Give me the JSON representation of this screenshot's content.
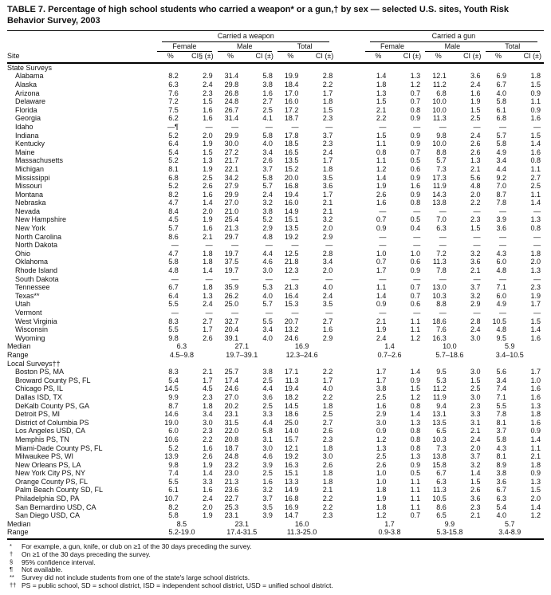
{
  "title": "TABLE 7. Percentage of high school students who carried a weapon* or a gun,† by sex — selected U.S. sites, Youth Risk Behavior Survey, 2003",
  "header": {
    "site_label": "Site",
    "groups": [
      {
        "label": "Carried a weapon"
      },
      {
        "label": "Carried a gun"
      }
    ],
    "subgroups": [
      "Female",
      "Male",
      "Total"
    ],
    "col_pct": "%",
    "col_ci_first": "CI§ (±)",
    "col_ci": "CI (±)"
  },
  "sections": [
    {
      "label": "State Surveys",
      "rows": [
        {
          "site": "Alabama",
          "values": [
            "8.2",
            "2.9",
            "31.4",
            "5.8",
            "19.9",
            "2.8",
            "1.4",
            "1.3",
            "12.1",
            "3.6",
            "6.9",
            "1.8"
          ]
        },
        {
          "site": "Alaska",
          "values": [
            "6.3",
            "2.4",
            "29.8",
            "3.8",
            "18.4",
            "2.2",
            "1.8",
            "1.2",
            "11.2",
            "2.4",
            "6.7",
            "1.5"
          ]
        },
        {
          "site": "Arizona",
          "values": [
            "7.6",
            "2.3",
            "26.8",
            "1.6",
            "17.0",
            "1.7",
            "1.3",
            "0.7",
            "6.8",
            "1.6",
            "4.0",
            "0.9"
          ]
        },
        {
          "site": "Delaware",
          "values": [
            "7.2",
            "1.5",
            "24.8",
            "2.7",
            "16.0",
            "1.8",
            "1.5",
            "0.7",
            "10.0",
            "1.9",
            "5.8",
            "1.1"
          ]
        },
        {
          "site": "Florida",
          "values": [
            "7.5",
            "1.6",
            "26.7",
            "2.5",
            "17.2",
            "1.5",
            "2.1",
            "0.8",
            "10.0",
            "1.5",
            "6.1",
            "0.9"
          ]
        },
        {
          "site": "Georgia",
          "values": [
            "6.2",
            "1.6",
            "31.4",
            "4.1",
            "18.7",
            "2.3",
            "2.2",
            "0.9",
            "11.3",
            "2.5",
            "6.8",
            "1.6"
          ]
        },
        {
          "site": "Idaho",
          "values": [
            "—¶",
            "—",
            "—",
            "—",
            "—",
            "—",
            "—",
            "—",
            "—",
            "—",
            "—",
            "—"
          ]
        },
        {
          "site": "Indiana",
          "values": [
            "5.2",
            "2.0",
            "29.9",
            "5.8",
            "17.8",
            "3.7",
            "1.5",
            "0.9",
            "9.8",
            "2.4",
            "5.7",
            "1.5"
          ]
        },
        {
          "site": "Kentucky",
          "values": [
            "6.4",
            "1.9",
            "30.0",
            "4.0",
            "18.5",
            "2.3",
            "1.1",
            "0.9",
            "10.0",
            "2.6",
            "5.8",
            "1.4"
          ]
        },
        {
          "site": "Maine",
          "values": [
            "5.4",
            "1.5",
            "27.2",
            "3.4",
            "16.5",
            "2.4",
            "0.8",
            "0.7",
            "8.8",
            "2.6",
            "4.9",
            "1.6"
          ]
        },
        {
          "site": "Massachusetts",
          "values": [
            "5.2",
            "1.3",
            "21.7",
            "2.6",
            "13.5",
            "1.7",
            "1.1",
            "0.5",
            "5.7",
            "1.3",
            "3.4",
            "0.8"
          ]
        },
        {
          "site": "Michigan",
          "values": [
            "8.1",
            "1.9",
            "22.1",
            "3.7",
            "15.2",
            "1.8",
            "1.2",
            "0.6",
            "7.3",
            "2.1",
            "4.4",
            "1.1"
          ]
        },
        {
          "site": "Mississippi",
          "values": [
            "6.8",
            "2.5",
            "34.2",
            "5.8",
            "20.0",
            "3.5",
            "1.4",
            "0.9",
            "17.3",
            "5.6",
            "9.2",
            "2.7"
          ]
        },
        {
          "site": "Missouri",
          "values": [
            "5.2",
            "2.6",
            "27.9",
            "5.7",
            "16.8",
            "3.6",
            "1.9",
            "1.6",
            "11.9",
            "4.8",
            "7.0",
            "2.5"
          ]
        },
        {
          "site": "Montana",
          "values": [
            "8.2",
            "1.6",
            "29.9",
            "2.4",
            "19.4",
            "1.7",
            "2.6",
            "0.9",
            "14.3",
            "2.0",
            "8.7",
            "1.1"
          ]
        },
        {
          "site": "Nebraska",
          "values": [
            "4.7",
            "1.4",
            "27.0",
            "3.2",
            "16.0",
            "2.1",
            "1.6",
            "0.8",
            "13.8",
            "2.2",
            "7.8",
            "1.4"
          ]
        },
        {
          "site": "Nevada",
          "values": [
            "8.4",
            "2.0",
            "21.0",
            "3.8",
            "14.9",
            "2.1",
            "—",
            "—",
            "—",
            "—",
            "—",
            "—"
          ]
        },
        {
          "site": "New Hampshire",
          "values": [
            "4.5",
            "1.9",
            "25.4",
            "5.2",
            "15.1",
            "3.2",
            "0.7",
            "0.5",
            "7.0",
            "2.3",
            "3.9",
            "1.3"
          ]
        },
        {
          "site": "New York",
          "values": [
            "5.7",
            "1.6",
            "21.3",
            "2.9",
            "13.5",
            "2.0",
            "0.9",
            "0.4",
            "6.3",
            "1.5",
            "3.6",
            "0.8"
          ]
        },
        {
          "site": "North Carolina",
          "values": [
            "8.6",
            "2.1",
            "29.7",
            "4.8",
            "19.2",
            "2.9",
            "—",
            "—",
            "—",
            "—",
            "—",
            "—"
          ]
        },
        {
          "site": "North Dakota",
          "values": [
            "—",
            "—",
            "—",
            "—",
            "—",
            "—",
            "—",
            "—",
            "—",
            "—",
            "—",
            "—"
          ]
        },
        {
          "site": "Ohio",
          "values": [
            "4.7",
            "1.8",
            "19.7",
            "4.4",
            "12.5",
            "2.8",
            "1.0",
            "1.0",
            "7.2",
            "3.2",
            "4.3",
            "1.8"
          ]
        },
        {
          "site": "Oklahoma",
          "values": [
            "5.8",
            "1.8",
            "37.5",
            "4.6",
            "21.8",
            "3.4",
            "0.7",
            "0.6",
            "11.3",
            "3.6",
            "6.0",
            "2.0"
          ]
        },
        {
          "site": "Rhode Island",
          "values": [
            "4.8",
            "1.4",
            "19.7",
            "3.0",
            "12.3",
            "2.0",
            "1.7",
            "0.9",
            "7.8",
            "2.1",
            "4.8",
            "1.3"
          ]
        },
        {
          "site": "South Dakota",
          "values": [
            "—",
            "—",
            "—",
            "—",
            "—",
            "—",
            "—",
            "—",
            "—",
            "—",
            "—",
            "—"
          ]
        },
        {
          "site": "Tennessee",
          "values": [
            "6.7",
            "1.8",
            "35.9",
            "5.3",
            "21.3",
            "4.0",
            "1.1",
            "0.7",
            "13.0",
            "3.7",
            "7.1",
            "2.3"
          ]
        },
        {
          "site": "Texas**",
          "values": [
            "6.4",
            "1.3",
            "26.2",
            "4.0",
            "16.4",
            "2.4",
            "1.4",
            "0.7",
            "10.3",
            "3.2",
            "6.0",
            "1.9"
          ]
        },
        {
          "site": "Utah",
          "values": [
            "5.5",
            "2.4",
            "25.0",
            "5.7",
            "15.3",
            "3.5",
            "0.9",
            "0.6",
            "8.8",
            "2.9",
            "4.9",
            "1.7"
          ]
        },
        {
          "site": "Vermont",
          "values": [
            "—",
            "—",
            "—",
            "—",
            "—",
            "—",
            "—",
            "—",
            "—",
            "—",
            "—",
            "—"
          ]
        },
        {
          "site": "West Virginia",
          "values": [
            "8.3",
            "2.7",
            "32.7",
            "5.5",
            "20.7",
            "2.7",
            "2.1",
            "1.1",
            "18.6",
            "2.8",
            "10.5",
            "1.5"
          ]
        },
        {
          "site": "Wisconsin",
          "values": [
            "5.5",
            "1.7",
            "20.4",
            "3.4",
            "13.2",
            "1.6",
            "1.9",
            "1.1",
            "7.6",
            "2.4",
            "4.8",
            "1.4"
          ]
        },
        {
          "site": "Wyoming",
          "values": [
            "9.8",
            "2.6",
            "39.1",
            "4.0",
            "24.6",
            "2.9",
            "2.4",
            "1.2",
            "16.3",
            "3.0",
            "9.5",
            "1.6"
          ]
        }
      ],
      "median": {
        "label": "Median",
        "values": [
          "6.3",
          "27.1",
          "16.9",
          "1.4",
          "10.0",
          "5.9"
        ]
      },
      "range": {
        "label": "Range",
        "values": [
          "4.5–9.8",
          "19.7–39.1",
          "12.3–24.6",
          "0.7–2.6",
          "5.7–18.6",
          "3.4–10.5"
        ]
      }
    },
    {
      "label": "Local Surveys††",
      "rows": [
        {
          "site": "Boston PS, MA",
          "values": [
            "8.3",
            "2.1",
            "25.7",
            "3.8",
            "17.1",
            "2.2",
            "1.7",
            "1.4",
            "9.5",
            "3.0",
            "5.6",
            "1.7"
          ]
        },
        {
          "site": "Broward County PS, FL",
          "values": [
            "5.4",
            "1.7",
            "17.4",
            "2.5",
            "11.3",
            "1.7",
            "1.7",
            "0.9",
            "5.3",
            "1.5",
            "3.4",
            "1.0"
          ]
        },
        {
          "site": "Chicago PS, IL",
          "values": [
            "14.5",
            "4.5",
            "24.6",
            "4.4",
            "19.4",
            "4.0",
            "3.8",
            "1.5",
            "11.2",
            "2.5",
            "7.4",
            "1.6"
          ]
        },
        {
          "site": "Dallas ISD, TX",
          "values": [
            "9.9",
            "2.3",
            "27.0",
            "3.6",
            "18.2",
            "2.2",
            "2.5",
            "1.2",
            "11.9",
            "3.0",
            "7.1",
            "1.6"
          ]
        },
        {
          "site": "DeKalb County PS, GA",
          "values": [
            "8.7",
            "1.8",
            "20.2",
            "2.5",
            "14.5",
            "1.8",
            "1.6",
            "0.8",
            "9.4",
            "2.3",
            "5.5",
            "1.3"
          ]
        },
        {
          "site": "Detroit PS, MI",
          "values": [
            "14.6",
            "3.4",
            "23.1",
            "3.3",
            "18.6",
            "2.5",
            "2.9",
            "1.4",
            "13.1",
            "3.3",
            "7.8",
            "1.8"
          ]
        },
        {
          "site": "District of Columbia PS",
          "values": [
            "19.0",
            "3.0",
            "31.5",
            "4.4",
            "25.0",
            "2.7",
            "3.0",
            "1.3",
            "13.5",
            "3.1",
            "8.1",
            "1.6"
          ]
        },
        {
          "site": "Los Angeles USD, CA",
          "values": [
            "6.0",
            "2.3",
            "22.0",
            "5.8",
            "14.0",
            "2.6",
            "0.9",
            "0.8",
            "6.5",
            "2.1",
            "3.7",
            "0.9"
          ]
        },
        {
          "site": "Memphis PS, TN",
          "values": [
            "10.6",
            "2.2",
            "20.8",
            "3.1",
            "15.7",
            "2.3",
            "1.2",
            "0.8",
            "10.3",
            "2.4",
            "5.8",
            "1.4"
          ]
        },
        {
          "site": "Miami-Dade County PS, FL",
          "values": [
            "5.2",
            "1.6",
            "18.7",
            "3.0",
            "12.1",
            "1.8",
            "1.3",
            "0.8",
            "7.3",
            "2.0",
            "4.3",
            "1.1"
          ]
        },
        {
          "site": "Milwaukee PS, WI",
          "values": [
            "13.9",
            "2.6",
            "24.8",
            "4.6",
            "19.2",
            "3.0",
            "2.5",
            "1.3",
            "13.8",
            "3.7",
            "8.1",
            "2.1"
          ]
        },
        {
          "site": "New Orleans PS, LA",
          "values": [
            "9.8",
            "1.9",
            "23.2",
            "3.9",
            "16.3",
            "2.6",
            "2.6",
            "0.9",
            "15.8",
            "3.2",
            "8.9",
            "1.8"
          ]
        },
        {
          "site": "New York City PS, NY",
          "values": [
            "7.4",
            "1.4",
            "23.0",
            "2.5",
            "15.1",
            "1.8",
            "1.0",
            "0.5",
            "6.7",
            "1.4",
            "3.8",
            "0.9"
          ]
        },
        {
          "site": "Orange County PS, FL",
          "values": [
            "5.5",
            "3.3",
            "21.3",
            "1.6",
            "13.3",
            "1.8",
            "1.0",
            "1.1",
            "6.3",
            "1.5",
            "3.6",
            "1.3"
          ]
        },
        {
          "site": "Palm Beach County SD, FL",
          "values": [
            "6.1",
            "1.6",
            "23.6",
            "3.2",
            "14.9",
            "2.1",
            "1.8",
            "1.1",
            "11.3",
            "2.6",
            "6.7",
            "1.5"
          ]
        },
        {
          "site": "Philadelphia SD, PA",
          "values": [
            "10.7",
            "2.4",
            "22.7",
            "3.7",
            "16.8",
            "2.2",
            "1.9",
            "1.1",
            "10.5",
            "3.6",
            "6.3",
            "2.0"
          ]
        },
        {
          "site": "San Bernardino USD, CA",
          "values": [
            "8.2",
            "2.0",
            "25.3",
            "3.5",
            "16.9",
            "2.2",
            "1.8",
            "1.1",
            "8.6",
            "2.3",
            "5.4",
            "1.4"
          ]
        },
        {
          "site": "San Diego USD, CA",
          "values": [
            "5.8",
            "1.9",
            "23.1",
            "3.9",
            "14.7",
            "2.3",
            "1.2",
            "0.7",
            "6.5",
            "2.1",
            "4.0",
            "1.2"
          ]
        }
      ],
      "median": {
        "label": "Median",
        "values": [
          "8.5",
          "23.1",
          "16.0",
          "1.7",
          "9.9",
          "5.7"
        ]
      },
      "range": {
        "label": "Range",
        "values": [
          "5.2-19.0",
          "17.4-31.5",
          "11.3-25.0",
          "0.9-3.8",
          "5.3-15.8",
          "3.4-8.9"
        ]
      }
    }
  ],
  "footnotes": [
    {
      "mark": "*",
      "text": "For example, a gun, knife, or club on ≥1 of the 30 days preceding the survey."
    },
    {
      "mark": "†",
      "text": "On ≥1 of the 30 days preceding the survey."
    },
    {
      "mark": "§",
      "text": "95% confidence interval."
    },
    {
      "mark": "¶",
      "text": "Not available."
    },
    {
      "mark": "**",
      "text": "Survey did not include students from one of the state's large school districts."
    },
    {
      "mark": "††",
      "text": "PS = public school, SD = school district, ISD = independent school district, USD = unified school district."
    }
  ]
}
